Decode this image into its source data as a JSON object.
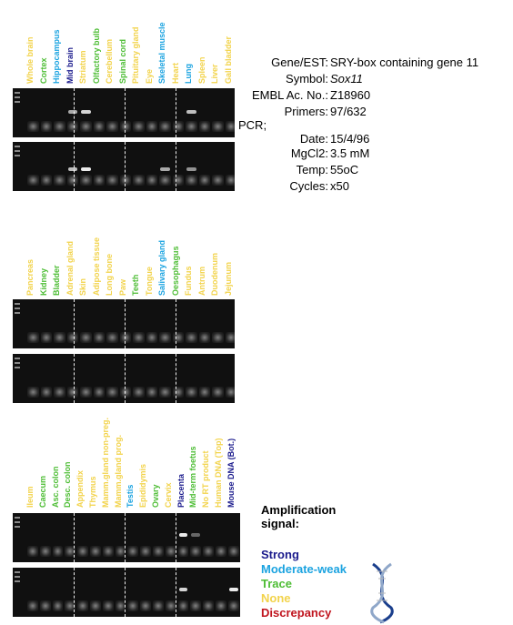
{
  "panels": [
    {
      "lanes": [
        {
          "label": "Whole brain",
          "color": "#f2d34b"
        },
        {
          "label": "Cortex",
          "color": "#4dbd34"
        },
        {
          "label": "Hippocampus",
          "color": "#1ba3e0"
        },
        {
          "label": "Mid brain",
          "color": "#1a1a8c"
        },
        {
          "label": "Striatum",
          "color": "#f2d34b"
        },
        {
          "label": "Olfactory bulb",
          "color": "#4dbd34"
        },
        {
          "label": "Cerebellum",
          "color": "#f2d34b"
        },
        {
          "label": "Spinal cord",
          "color": "#4dbd34"
        },
        {
          "label": "Pituitary gland",
          "color": "#f2d34b"
        },
        {
          "label": "Eye",
          "color": "#f2d34b"
        },
        {
          "label": "Skeletal muscle",
          "color": "#1ba3e0"
        },
        {
          "label": "Heart",
          "color": "#f2d34b"
        },
        {
          "label": "Lung",
          "color": "#1ba3e0"
        },
        {
          "label": "Spleen",
          "color": "#f2d34b"
        },
        {
          "label": "Liver",
          "color": "#f2d34b"
        },
        {
          "label": "Gall bladder",
          "color": "#f2d34b"
        }
      ]
    },
    {
      "lanes": [
        {
          "label": "Pancreas",
          "color": "#f2d34b"
        },
        {
          "label": "Kidney",
          "color": "#4dbd34"
        },
        {
          "label": "Bladder",
          "color": "#4dbd34"
        },
        {
          "label": "Adrenal gland",
          "color": "#f2d34b"
        },
        {
          "label": "Skin",
          "color": "#f2d34b"
        },
        {
          "label": "Adipose tissue",
          "color": "#f2d34b"
        },
        {
          "label": "Long bone",
          "color": "#f2d34b"
        },
        {
          "label": "Paw",
          "color": "#f2d34b"
        },
        {
          "label": "Teeth",
          "color": "#4dbd34"
        },
        {
          "label": "Tongue",
          "color": "#f2d34b"
        },
        {
          "label": "Salivary gland",
          "color": "#1ba3e0"
        },
        {
          "label": "Oesophagus",
          "color": "#4dbd34"
        },
        {
          "label": "Fundus",
          "color": "#f2d34b"
        },
        {
          "label": "Antrum",
          "color": "#f2d34b"
        },
        {
          "label": "Duodenum",
          "color": "#f2d34b"
        },
        {
          "label": "Jejunum",
          "color": "#f2d34b"
        }
      ]
    },
    {
      "lanes": [
        {
          "label": "Ileum",
          "color": "#f2d34b"
        },
        {
          "label": "Caecum",
          "color": "#4dbd34"
        },
        {
          "label": "Asc. colon",
          "color": "#4dbd34"
        },
        {
          "label": "Desc. colon",
          "color": "#4dbd34"
        },
        {
          "label": "Appendix",
          "color": "#f2d34b"
        },
        {
          "label": "Thymus",
          "color": "#f2d34b"
        },
        {
          "label": "Mamm.gland non-preg.",
          "color": "#f2d34b"
        },
        {
          "label": "Mamm.gland prog.",
          "color": "#f2d34b"
        },
        {
          "label": "Testis",
          "color": "#1ba3e0"
        },
        {
          "label": "Epididymis",
          "color": "#f2d34b"
        },
        {
          "label": "Ovary",
          "color": "#4dbd34"
        },
        {
          "label": "Cervix",
          "color": "#f2d34b"
        },
        {
          "label": "Placenta",
          "color": "#1a1a8c"
        },
        {
          "label": "Mid-term foetus",
          "color": "#4dbd34"
        },
        {
          "label": "No RT product",
          "color": "#f2d34b"
        },
        {
          "label": "Human DNA (Top)",
          "color": "#f2d34b"
        },
        {
          "label": "Mouse DNA (Bot.)",
          "color": "#1a1a8c"
        }
      ]
    }
  ],
  "info": [
    {
      "key": "Gene/EST:",
      "value": "SRY-box containing gene 11"
    },
    {
      "key": "Symbol:",
      "value": "Sox11"
    },
    {
      "key": "EMBL Ac. No.:",
      "value": "Z18960"
    },
    {
      "key": "Primers:",
      "value": "97/632"
    },
    {
      "key": "PCR;",
      "value": ""
    },
    {
      "key": "Date:",
      "value": "15/4/96"
    },
    {
      "key": "MgCl2:",
      "value": "3.5 mM"
    },
    {
      "key": "Temp:",
      "value": "55oC"
    },
    {
      "key": "Cycles:",
      "value": "x50"
    }
  ],
  "legend": {
    "title": "Amplification signal:",
    "items": [
      {
        "label": "Strong",
        "color": "#1a1a8c"
      },
      {
        "label": "Moderate-weak",
        "color": "#1ba3e0"
      },
      {
        "label": "Trace",
        "color": "#4dbd34"
      },
      {
        "label": "None",
        "color": "#f2d34b"
      },
      {
        "label": "Discrepancy",
        "color": "#c0141e"
      }
    ]
  }
}
